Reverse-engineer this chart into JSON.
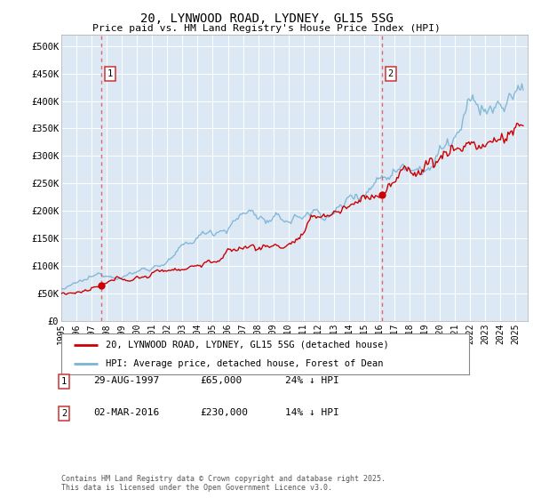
{
  "title": "20, LYNWOOD ROAD, LYDNEY, GL15 5SG",
  "subtitle": "Price paid vs. HM Land Registry's House Price Index (HPI)",
  "plot_bg_color": "#dce9f5",
  "ylim": [
    0,
    520000
  ],
  "ytick_labels": [
    "£0",
    "£50K",
    "£100K",
    "£150K",
    "£200K",
    "£250K",
    "£300K",
    "£350K",
    "£400K",
    "£450K",
    "£500K"
  ],
  "sale1_date": 1997.66,
  "sale1_price": 65000,
  "sale2_date": 2016.17,
  "sale2_price": 230000,
  "legend_line1": "20, LYNWOOD ROAD, LYDNEY, GL15 5SG (detached house)",
  "legend_line2": "HPI: Average price, detached house, Forest of Dean",
  "footer": "Contains HM Land Registry data © Crown copyright and database right 2025.\nThis data is licensed under the Open Government Licence v3.0.",
  "red_color": "#cc0000",
  "blue_color": "#7ab3d4",
  "vline_color": "#e05050",
  "grid_color": "#ffffff",
  "spine_color": "#aaaaaa"
}
